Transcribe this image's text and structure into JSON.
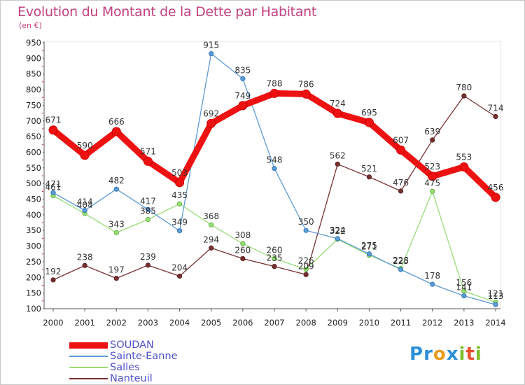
{
  "header": {
    "title": "Evolution du Montant de la Dette par Habitant",
    "subtitle": "(en €)"
  },
  "brand": {
    "letters": [
      "P",
      "r",
      "o",
      "x",
      "i",
      "t",
      "i"
    ],
    "colors": [
      "#2b8fd8",
      "#2b8fd8",
      "#e89a1b",
      "#2b8fd8",
      "#7cbf2a",
      "#e8502b",
      "#7cbf2a"
    ]
  },
  "chart_data": {
    "type": "line",
    "title": "Evolution du Montant de la Dette par Habitant",
    "subtitle": "(en €)",
    "xlabel": "",
    "ylabel": "",
    "x": [
      "2000",
      "2001",
      "2002",
      "2003",
      "2004",
      "2005",
      "2006",
      "2007",
      "2008",
      "2009",
      "2010",
      "2011",
      "2012",
      "2013",
      "2014"
    ],
    "ylim": [
      100,
      950
    ],
    "yticks": [
      "100",
      "150",
      "200",
      "250",
      "300",
      "350",
      "400",
      "450",
      "500",
      "550",
      "600",
      "650",
      "700",
      "750",
      "800",
      "850",
      "900",
      "950"
    ],
    "grid": false,
    "legend_position": "bottom-left",
    "series": [
      {
        "name": "SOUDAN",
        "color": "#ee1111",
        "values": [
          671,
          590,
          666,
          571,
          503,
          692,
          749,
          788,
          786,
          724,
          695,
          607,
          523,
          553,
          456
        ],
        "labels": [
          "671",
          "590",
          "666",
          "571",
          "503",
          "692",
          "749",
          "788",
          "786",
          "724",
          "695",
          "607",
          "523",
          "553",
          "456"
        ]
      },
      {
        "name": "Sainte-Eanne",
        "color": "#5b9bd5",
        "values": [
          471,
          414,
          482,
          417,
          349,
          915,
          835,
          548,
          350,
          324,
          275,
          225,
          178,
          141,
          113
        ],
        "labels": [
          "471",
          "414",
          "482",
          "417",
          "349",
          "915",
          "835",
          "548",
          "350",
          "324",
          "275",
          "225",
          "178",
          "141",
          "113"
        ]
      },
      {
        "name": "Salles",
        "color": "#99dd77",
        "values": [
          461,
          404,
          343,
          385,
          435,
          368,
          308,
          260,
          226,
          322,
          271,
          228,
          475,
          156,
          121
        ],
        "labels": [
          "461",
          "404",
          "343",
          "385",
          "435",
          "368",
          "308",
          "260",
          "226",
          "322",
          "271",
          "228",
          "475",
          "156",
          "121"
        ]
      },
      {
        "name": "Nanteuil",
        "color": "#7a3030",
        "values": [
          192,
          238,
          197,
          239,
          204,
          294,
          260,
          235,
          209,
          562,
          521,
          476,
          639,
          780,
          714
        ],
        "labels": [
          "192",
          "238",
          "197",
          "239",
          "204",
          "294",
          "260",
          "235",
          "209",
          "562",
          "521",
          "476",
          "639",
          "780",
          "714"
        ]
      }
    ]
  }
}
